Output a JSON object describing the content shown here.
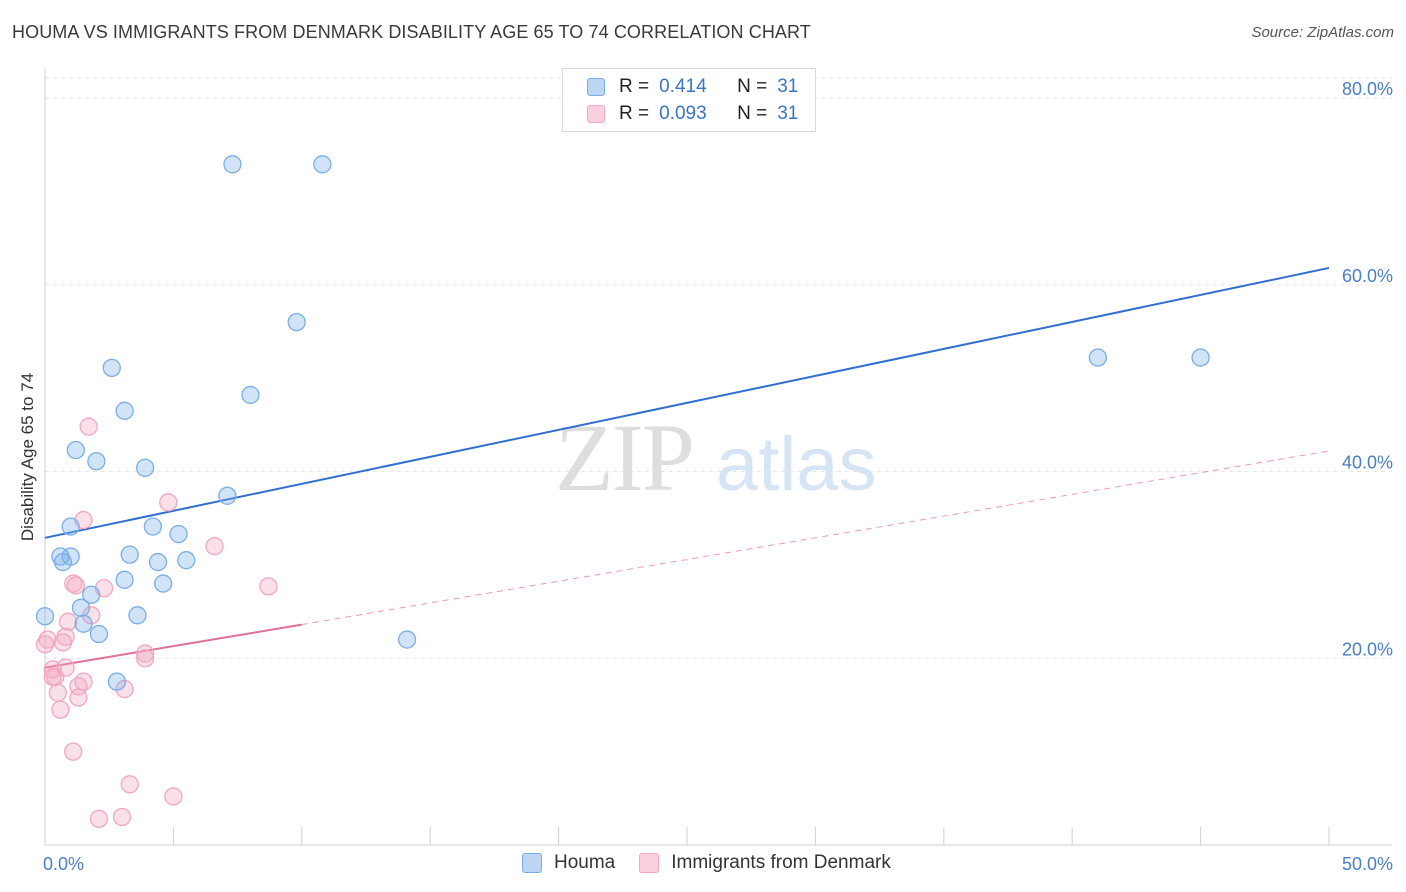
{
  "title": "HOUMA VS IMMIGRANTS FROM DENMARK DISABILITY AGE 65 TO 74 CORRELATION CHART",
  "source": "Source: ZipAtlas.com",
  "watermark": {
    "zip": "ZIP",
    "atlas": "atlas"
  },
  "legend": {
    "rows": [
      {
        "r_label": "R =",
        "r_value": "0.414",
        "n_label": "N =",
        "n_value": "31"
      },
      {
        "r_label": "R =",
        "r_value": "0.093",
        "n_label": "N =",
        "n_value": "31"
      }
    ]
  },
  "chart_data": {
    "type": "scatter",
    "title": "HOUMA VS IMMIGRANTS FROM DENMARK DISABILITY AGE 65 TO 74 CORRELATION CHART",
    "xlabel": "",
    "ylabel": "Disability Age 65 to 74",
    "xlim": [
      0,
      50
    ],
    "ylim": [
      0,
      80
    ],
    "x_tick_labels": [
      "0.0%",
      "50.0%"
    ],
    "y_ticks": [
      20,
      40,
      60,
      80
    ],
    "y_tick_labels": [
      "20.0%",
      "40.0%",
      "60.0%",
      "80.0%"
    ],
    "colors": {
      "houma": "#7aaee8",
      "denmark": "#f2a6c0",
      "houma_line": "#2f6fcf",
      "denmark_line": "#e07099"
    },
    "series": [
      {
        "name": "Houma",
        "R": 0.414,
        "N": 31,
        "trend": {
          "x0": 0,
          "y0": 32.9,
          "x1": 50,
          "y1": 61.8
        },
        "points": [
          [
            7.3,
            72.9
          ],
          [
            10.8,
            72.9
          ],
          [
            9.8,
            56.0
          ],
          [
            2.6,
            51.1
          ],
          [
            3.1,
            46.5
          ],
          [
            8.0,
            48.2
          ],
          [
            1.2,
            42.3
          ],
          [
            2.0,
            41.1
          ],
          [
            3.9,
            40.4
          ],
          [
            7.1,
            37.4
          ],
          [
            1.0,
            34.1
          ],
          [
            4.2,
            34.1
          ],
          [
            5.2,
            33.3
          ],
          [
            1.0,
            30.9
          ],
          [
            0.6,
            30.9
          ],
          [
            0.7,
            30.3
          ],
          [
            3.3,
            31.1
          ],
          [
            4.4,
            30.3
          ],
          [
            5.5,
            30.5
          ],
          [
            3.1,
            28.4
          ],
          [
            4.6,
            28.0
          ],
          [
            1.8,
            26.8
          ],
          [
            1.4,
            25.4
          ],
          [
            3.6,
            24.6
          ],
          [
            0.0,
            24.5
          ],
          [
            1.5,
            23.7
          ],
          [
            2.1,
            22.6
          ],
          [
            14.1,
            22.0
          ],
          [
            2.8,
            17.5
          ],
          [
            41.0,
            52.2
          ],
          [
            45.0,
            52.2
          ]
        ]
      },
      {
        "name": "Immigrants from Denmark",
        "R": 0.093,
        "N": 31,
        "trend": {
          "x0": 0,
          "y0": 19.0,
          "x1": 10.0,
          "y1": 23.6
        },
        "trend_dashed": {
          "x0": 10.0,
          "y0": 23.6,
          "x1": 50,
          "y1": 42.2
        },
        "points": [
          [
            1.7,
            44.8
          ],
          [
            4.8,
            36.7
          ],
          [
            1.5,
            34.8
          ],
          [
            6.6,
            32.0
          ],
          [
            1.1,
            28.0
          ],
          [
            1.2,
            27.8
          ],
          [
            2.3,
            27.5
          ],
          [
            8.7,
            27.7
          ],
          [
            1.8,
            24.6
          ],
          [
            0.9,
            23.9
          ],
          [
            0.8,
            22.3
          ],
          [
            0.7,
            21.7
          ],
          [
            0.1,
            22.0
          ],
          [
            0.0,
            21.5
          ],
          [
            3.9,
            20.5
          ],
          [
            3.9,
            20.0
          ],
          [
            0.8,
            19.0
          ],
          [
            0.3,
            18.8
          ],
          [
            0.3,
            18.0
          ],
          [
            0.4,
            18.0
          ],
          [
            1.5,
            17.5
          ],
          [
            1.3,
            17.0
          ],
          [
            3.1,
            16.7
          ],
          [
            0.5,
            16.3
          ],
          [
            1.3,
            15.8
          ],
          [
            0.6,
            14.5
          ],
          [
            1.1,
            10.0
          ],
          [
            3.3,
            6.5
          ],
          [
            5.0,
            5.2
          ],
          [
            3.0,
            3.0
          ],
          [
            2.1,
            2.8
          ]
        ]
      }
    ]
  }
}
